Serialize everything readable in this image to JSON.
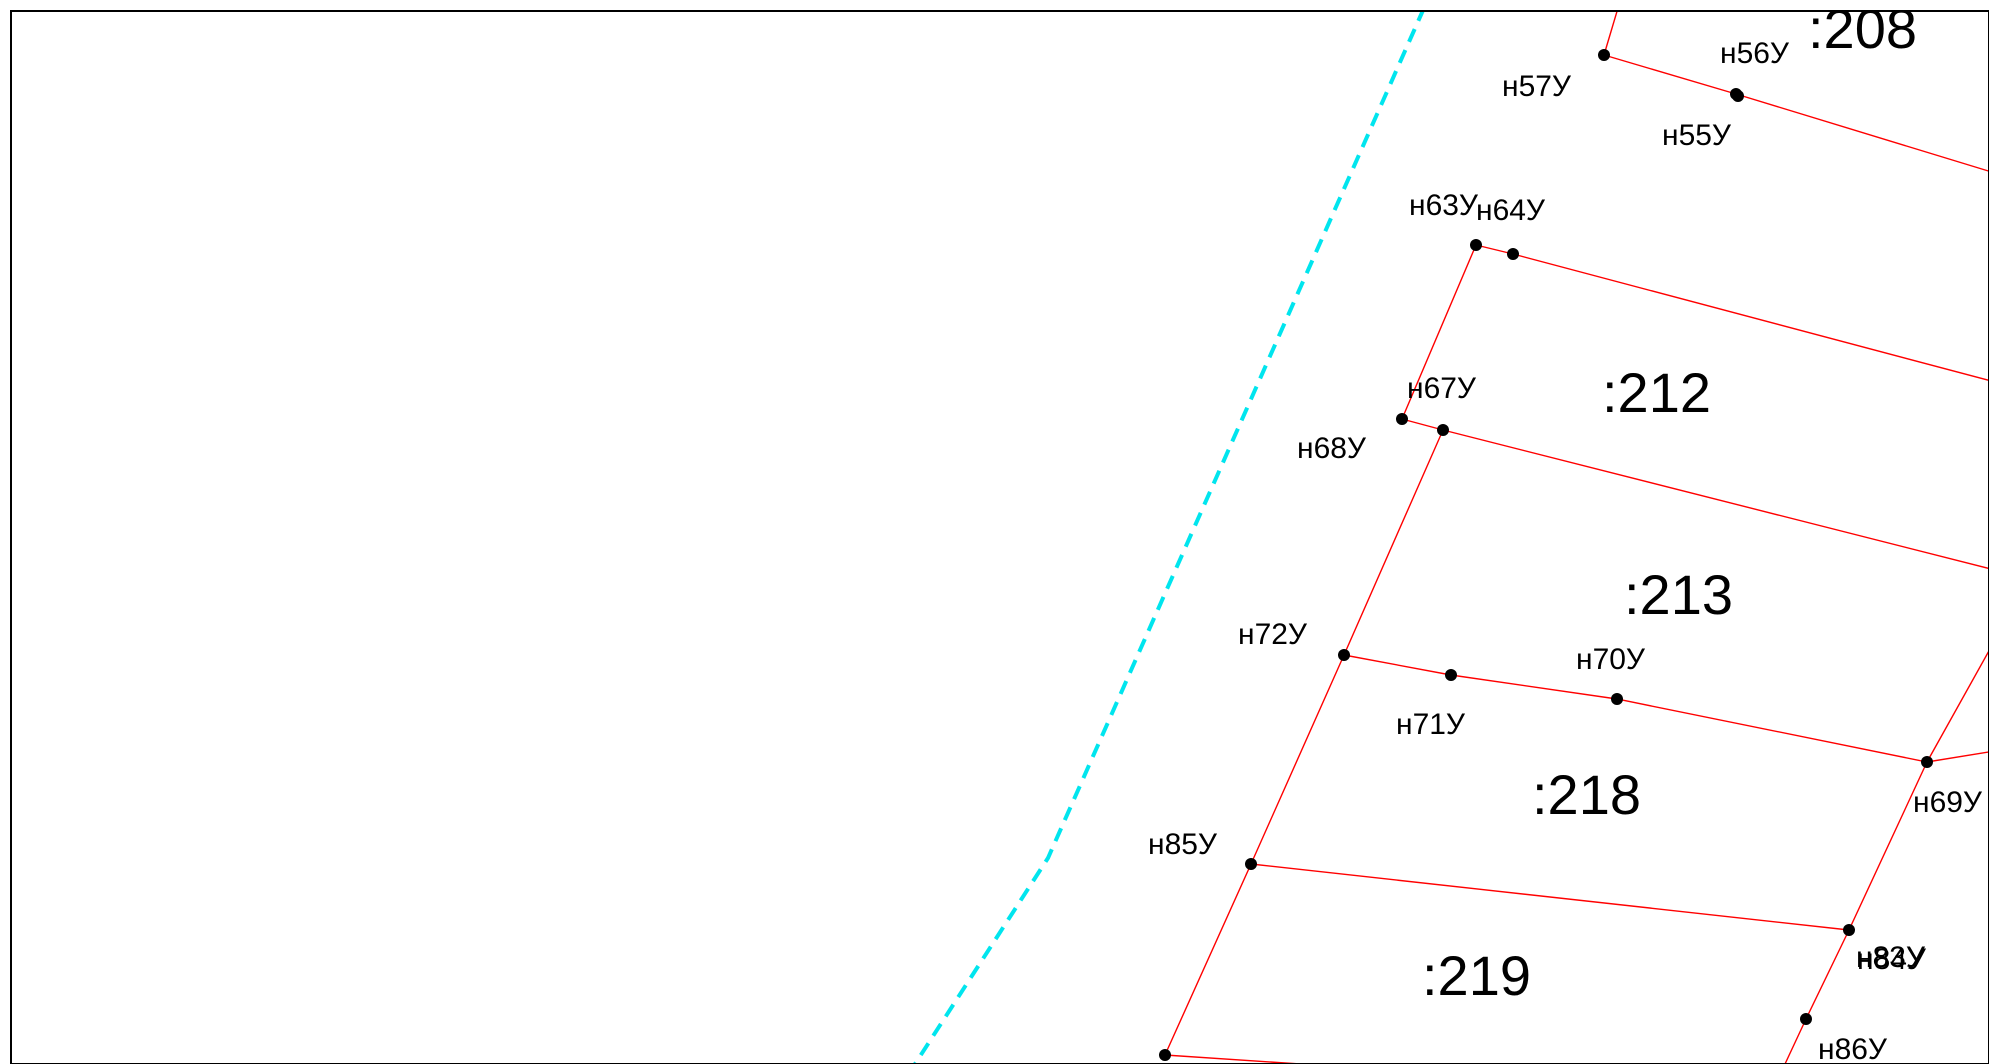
{
  "colors": {
    "parcel_boundary": "#ff0000",
    "zone_boundary": "#00e5ee",
    "point_marker": "#000000",
    "text": "#000000"
  },
  "parcels": [
    {
      "id": "p208",
      "label": ":208"
    },
    {
      "id": "p212",
      "label": ":212"
    },
    {
      "id": "p213",
      "label": ":213"
    },
    {
      "id": "p218",
      "label": ":218"
    },
    {
      "id": "p219",
      "label": ":219"
    }
  ],
  "points": [
    {
      "id": "n55",
      "label": "н55У"
    },
    {
      "id": "n56",
      "label": "н56У"
    },
    {
      "id": "n57",
      "label": "н57У"
    },
    {
      "id": "n63",
      "label": "н63У"
    },
    {
      "id": "n64",
      "label": "н64У"
    },
    {
      "id": "n67",
      "label": "н67У"
    },
    {
      "id": "n68",
      "label": "н68У"
    },
    {
      "id": "n69",
      "label": "н69У"
    },
    {
      "id": "n70",
      "label": "н70У"
    },
    {
      "id": "n71",
      "label": "н71У"
    },
    {
      "id": "n72",
      "label": "н72У"
    },
    {
      "id": "n83",
      "label": "н83У"
    },
    {
      "id": "n84",
      "label": "н84У"
    },
    {
      "id": "n85",
      "label": "н85У"
    },
    {
      "id": "n86",
      "label": "н86У"
    }
  ]
}
